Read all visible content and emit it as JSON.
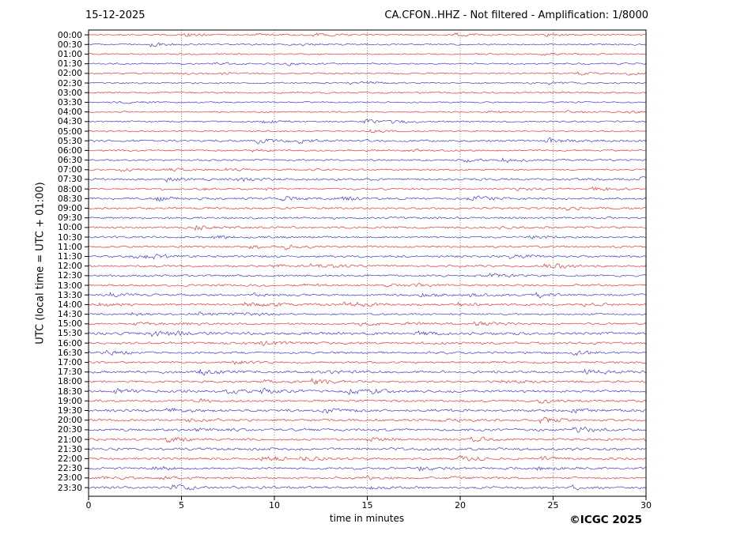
{
  "header": {
    "date": "15-12-2025",
    "title": "CA.CFON..HHZ - Not filtered - Amplification: 1/8000"
  },
  "footer": {
    "copyright": "©ICGC 2025"
  },
  "chart_data": {
    "type": "line",
    "title": "CA.CFON..HHZ - Not filtered - Amplification: 1/8000",
    "subtitle_date": "15-12-2025",
    "xlabel": "time in minutes",
    "ylabel": "UTC (local time = UTC + 01:00)",
    "xlim": [
      0,
      30
    ],
    "x_ticks": [
      0,
      5,
      10,
      15,
      20,
      25,
      30
    ],
    "grid": "vertical dotted gridlines at 5-minute intervals",
    "legend": "none",
    "palette": {
      "red": "#e32222",
      "blue": "#2a2ac8",
      "grid": "#666666",
      "frame": "#000000"
    },
    "row_minutes": 30,
    "rows": [
      {
        "label": "00:00",
        "color": "red",
        "amp": 1.1
      },
      {
        "label": "00:30",
        "color": "blue",
        "amp": 1.2
      },
      {
        "label": "01:00",
        "color": "red",
        "amp": 1.0
      },
      {
        "label": "01:30",
        "color": "blue",
        "amp": 1.2
      },
      {
        "label": "02:00",
        "color": "red",
        "amp": 1.1
      },
      {
        "label": "02:30",
        "color": "blue",
        "amp": 1.1
      },
      {
        "label": "03:00",
        "color": "red",
        "amp": 1.2
      },
      {
        "label": "03:30",
        "color": "blue",
        "amp": 1.1
      },
      {
        "label": "04:00",
        "color": "red",
        "amp": 1.1
      },
      {
        "label": "04:30",
        "color": "blue",
        "amp": 1.2
      },
      {
        "label": "05:00",
        "color": "red",
        "amp": 1.1
      },
      {
        "label": "05:30",
        "color": "blue",
        "amp": 1.6
      },
      {
        "label": "06:00",
        "color": "red",
        "amp": 1.3
      },
      {
        "label": "06:30",
        "color": "blue",
        "amp": 1.3
      },
      {
        "label": "07:00",
        "color": "red",
        "amp": 1.3
      },
      {
        "label": "07:30",
        "color": "blue",
        "amp": 1.7
      },
      {
        "label": "08:00",
        "color": "red",
        "amp": 1.3
      },
      {
        "label": "08:30",
        "color": "blue",
        "amp": 1.6
      },
      {
        "label": "09:00",
        "color": "red",
        "amp": 1.5
      },
      {
        "label": "09:30",
        "color": "blue",
        "amp": 1.6
      },
      {
        "label": "10:00",
        "color": "red",
        "amp": 1.5
      },
      {
        "label": "10:30",
        "color": "blue",
        "amp": 1.5
      },
      {
        "label": "11:00",
        "color": "red",
        "amp": 1.4
      },
      {
        "label": "11:30",
        "color": "blue",
        "amp": 1.6
      },
      {
        "label": "12:00",
        "color": "red",
        "amp": 1.5
      },
      {
        "label": "12:30",
        "color": "blue",
        "amp": 1.5
      },
      {
        "label": "13:00",
        "color": "red",
        "amp": 1.5
      },
      {
        "label": "13:30",
        "color": "blue",
        "amp": 1.5
      },
      {
        "label": "14:00",
        "color": "red",
        "amp": 1.5
      },
      {
        "label": "14:30",
        "color": "blue",
        "amp": 1.4
      },
      {
        "label": "15:00",
        "color": "red",
        "amp": 1.5
      },
      {
        "label": "15:30",
        "color": "blue",
        "amp": 2.0
      },
      {
        "label": "16:00",
        "color": "red",
        "amp": 1.8
      },
      {
        "label": "16:30",
        "color": "blue",
        "amp": 1.6
      },
      {
        "label": "17:00",
        "color": "red",
        "amp": 1.5
      },
      {
        "label": "17:30",
        "color": "blue",
        "amp": 2.0
      },
      {
        "label": "18:00",
        "color": "red",
        "amp": 1.6
      },
      {
        "label": "18:30",
        "color": "blue",
        "amp": 1.9
      },
      {
        "label": "19:00",
        "color": "red",
        "amp": 1.6
      },
      {
        "label": "19:30",
        "color": "blue",
        "amp": 2.0
      },
      {
        "label": "20:00",
        "color": "red",
        "amp": 1.7
      },
      {
        "label": "20:30",
        "color": "blue",
        "amp": 1.9
      },
      {
        "label": "21:00",
        "color": "red",
        "amp": 1.6
      },
      {
        "label": "21:30",
        "color": "blue",
        "amp": 1.9
      },
      {
        "label": "22:00",
        "color": "red",
        "amp": 1.6
      },
      {
        "label": "22:30",
        "color": "blue",
        "amp": 1.7
      },
      {
        "label": "23:00",
        "color": "red",
        "amp": 1.6
      },
      {
        "label": "23:30",
        "color": "blue",
        "amp": 1.8
      }
    ]
  }
}
